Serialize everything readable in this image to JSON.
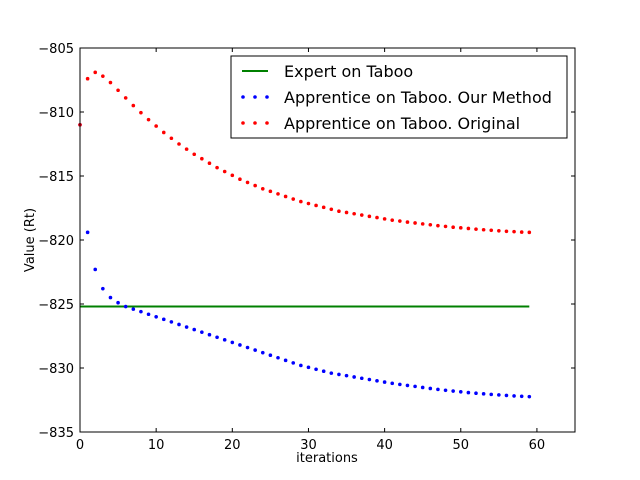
{
  "chart_data": {
    "type": "line",
    "title": "",
    "xlabel": "iterations",
    "ylabel": "Value (Rt)",
    "xlim": [
      0,
      65
    ],
    "ylim": [
      -835,
      -805
    ],
    "x_ticks": [
      0,
      10,
      20,
      30,
      40,
      50,
      60
    ],
    "y_ticks": [
      -835,
      -830,
      -825,
      -820,
      -815,
      -810,
      -805
    ],
    "x_tick_labels": [
      "0",
      "10",
      "20",
      "30",
      "40",
      "50",
      "60"
    ],
    "y_tick_labels": [
      "−835",
      "−830",
      "−825",
      "−820",
      "−815",
      "−810",
      "−805"
    ],
    "grid": false,
    "legend_position": "top-right",
    "series": [
      {
        "name": "Expert on Taboo",
        "style": "solid-line",
        "color": "#008000",
        "x": [
          0,
          59
        ],
        "y": [
          -825.2,
          -825.2
        ]
      },
      {
        "name": "Apprentice on Taboo. Our Method",
        "style": "dotted",
        "color": "#0000ff",
        "x": [
          0,
          1,
          2,
          3,
          4,
          5,
          6,
          7,
          8,
          9,
          10,
          11,
          12,
          13,
          14,
          15,
          16,
          17,
          18,
          19,
          20,
          21,
          22,
          23,
          24,
          25,
          26,
          27,
          28,
          29,
          30,
          31,
          32,
          33,
          34,
          35,
          36,
          37,
          38,
          39,
          40,
          41,
          42,
          43,
          44,
          45,
          46,
          47,
          48,
          49,
          50,
          51,
          52,
          53,
          54,
          55,
          56,
          57,
          58,
          59
        ],
        "y": [
          -811.0,
          -819.4,
          -822.3,
          -823.8,
          -824.5,
          -824.9,
          -825.2,
          -825.4,
          -825.6,
          -825.8,
          -826.0,
          -826.2,
          -826.4,
          -826.6,
          -826.8,
          -827.0,
          -827.2,
          -827.4,
          -827.6,
          -827.8,
          -828.0,
          -828.2,
          -828.4,
          -828.6,
          -828.8,
          -829.0,
          -829.2,
          -829.4,
          -829.6,
          -829.8,
          -829.95,
          -830.1,
          -830.25,
          -830.4,
          -830.5,
          -830.6,
          -830.7,
          -830.8,
          -830.9,
          -831.0,
          -831.1,
          -831.2,
          -831.28,
          -831.36,
          -831.44,
          -831.52,
          -831.6,
          -831.67,
          -831.74,
          -831.8,
          -831.86,
          -831.92,
          -831.97,
          -832.02,
          -832.06,
          -832.1,
          -832.14,
          -832.18,
          -832.21,
          -832.24
        ]
      },
      {
        "name": "Apprentice on Taboo. Original",
        "style": "dotted",
        "color": "#ff0000",
        "x": [
          0,
          1,
          2,
          3,
          4,
          5,
          6,
          7,
          8,
          9,
          10,
          11,
          12,
          13,
          14,
          15,
          16,
          17,
          18,
          19,
          20,
          21,
          22,
          23,
          24,
          25,
          26,
          27,
          28,
          29,
          30,
          31,
          32,
          33,
          34,
          35,
          36,
          37,
          38,
          39,
          40,
          41,
          42,
          43,
          44,
          45,
          46,
          47,
          48,
          49,
          50,
          51,
          52,
          53,
          54,
          55,
          56,
          57,
          58,
          59
        ],
        "y": [
          -811.0,
          -807.4,
          -806.9,
          -807.2,
          -807.7,
          -808.3,
          -808.9,
          -809.5,
          -810.05,
          -810.6,
          -811.1,
          -811.6,
          -812.05,
          -812.5,
          -812.9,
          -813.3,
          -813.65,
          -814.0,
          -814.35,
          -814.65,
          -814.95,
          -815.25,
          -815.5,
          -815.75,
          -816.0,
          -816.2,
          -816.4,
          -816.6,
          -816.8,
          -817.0,
          -817.15,
          -817.3,
          -817.45,
          -817.6,
          -817.75,
          -817.85,
          -817.95,
          -818.05,
          -818.15,
          -818.25,
          -818.35,
          -818.45,
          -818.52,
          -818.6,
          -818.67,
          -818.74,
          -818.81,
          -818.88,
          -818.94,
          -819.0,
          -819.05,
          -819.1,
          -819.15,
          -819.2,
          -819.24,
          -819.28,
          -819.32,
          -819.35,
          -819.38,
          -819.4
        ]
      }
    ]
  }
}
